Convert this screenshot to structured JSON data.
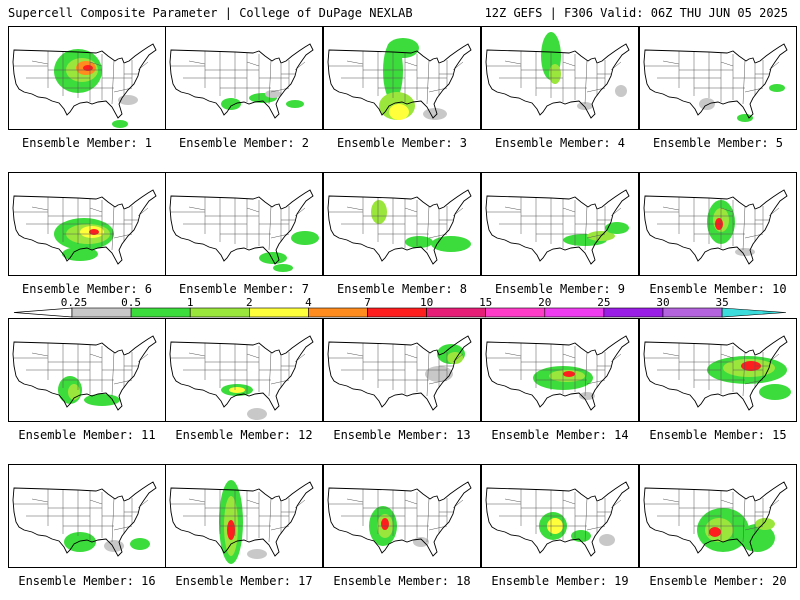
{
  "header": {
    "left": "Supercell Composite Parameter | College of DuPage NEXLAB",
    "right": "12Z GEFS | F306 Valid: 06Z THU JUN 05 2025"
  },
  "colorbar": {
    "ticks": [
      "0.25",
      "0.5",
      "1",
      "2",
      "4",
      "7",
      "10",
      "15",
      "20",
      "25",
      "30",
      "35"
    ],
    "colors": [
      "#c8c8c8",
      "#3cdc3c",
      "#9be63c",
      "#ffff3c",
      "#ff8c1e",
      "#ff1e1e",
      "#e61e78",
      "#ff3cc8",
      "#f03cf0",
      "#9b1ee6",
      "#b464dc",
      "#3cdcdc"
    ]
  },
  "members": [
    {
      "label": "Ensemble Member: 1"
    },
    {
      "label": "Ensemble Member: 2"
    },
    {
      "label": "Ensemble Member: 3"
    },
    {
      "label": "Ensemble Member: 4"
    },
    {
      "label": "Ensemble Member: 5"
    },
    {
      "label": "Ensemble Member: 6"
    },
    {
      "label": "Ensemble Member: 7"
    },
    {
      "label": "Ensemble Member: 8"
    },
    {
      "label": "Ensemble Member: 9"
    },
    {
      "label": "Ensemble Member: 10"
    },
    {
      "label": "Ensemble Member: 11"
    },
    {
      "label": "Ensemble Member: 12"
    },
    {
      "label": "Ensemble Member: 13"
    },
    {
      "label": "Ensemble Member: 14"
    },
    {
      "label": "Ensemble Member: 15"
    },
    {
      "label": "Ensemble Member: 16"
    },
    {
      "label": "Ensemble Member: 17"
    },
    {
      "label": "Ensemble Member: 18"
    },
    {
      "label": "Ensemble Member: 19"
    },
    {
      "label": "Ensemble Member: 20"
    }
  ]
}
